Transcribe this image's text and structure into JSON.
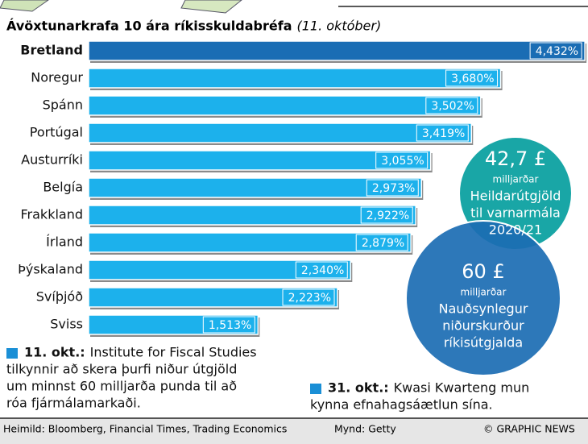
{
  "chart_data": {
    "type": "bar",
    "orientation": "horizontal",
    "title": "Ávöxtunarkrafa 10 ára ríkisskuldabréfa",
    "subtitle": "(11. október)",
    "categories": [
      "Bretland",
      "Noregur",
      "Spánn",
      "Portúgal",
      "Austurríki",
      "Belgía",
      "Frakkland",
      "Írland",
      "Þýskaland",
      "Svíþjóð",
      "Sviss"
    ],
    "values": [
      4.432,
      3.68,
      3.502,
      3.419,
      3.055,
      2.973,
      2.922,
      2.879,
      2.34,
      2.223,
      1.513
    ],
    "value_labels": [
      "4,432%",
      "3,680%",
      "3,502%",
      "3,419%",
      "3,055%",
      "2,973%",
      "2,922%",
      "2,879%",
      "2,340%",
      "2,223%",
      "1,513%"
    ],
    "color": "#1cb1ec",
    "highlight_color": "#1a6db4",
    "highlight": "Bretland",
    "xlim": [
      0,
      4.46
    ],
    "circles": [
      {
        "amount": "42,7 £",
        "unit": "milljarðar",
        "lines": [
          "Heildarútgjöld",
          "til varnarmála",
          "2020/21"
        ],
        "color": "#19a6a6"
      },
      {
        "amount": "60 £",
        "unit": "milljarðar",
        "lines": [
          "Nauðsynlegur",
          "niðurskurður",
          "ríkisútgjalda"
        ],
        "color": "#1b6db3"
      }
    ],
    "notes": [
      {
        "date": "11. okt.:",
        "lines": [
          "Institute for Fiscal Studies",
          "tilkynnir að skera þurfi niður útgjöld",
          "um minnst 60 milljarða punda til að",
          "róa fjármálamarkaði."
        ]
      },
      {
        "date": "31. okt.:",
        "lines": [
          "Kwasi Kwarteng mun",
          "kynna efnahagsáætlun sína."
        ]
      }
    ],
    "footer": {
      "source": "Heimild: Bloomberg, Financial Times, Trading Economics",
      "photo": "Mynd: Getty",
      "credit": "© GRAPHIC NEWS"
    }
  }
}
